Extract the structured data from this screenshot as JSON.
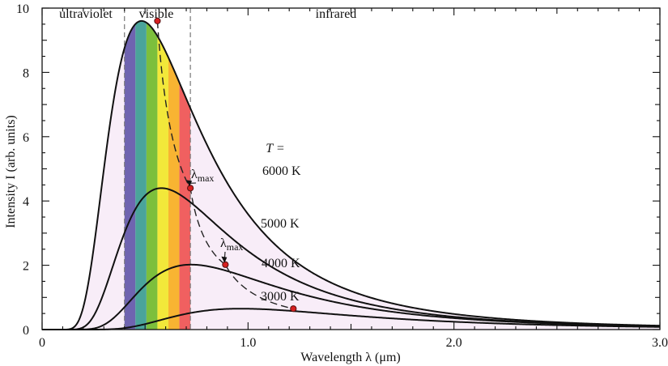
{
  "chart_data": {
    "type": "line",
    "xlabel": "Wavelength  λ  (μm)",
    "ylabel": "Intensity  I  (arb. units)",
    "xlim": [
      0,
      3.0
    ],
    "ylim": [
      0,
      10
    ],
    "x_ticks": [
      "0",
      "1.0",
      "2.0",
      "3.0"
    ],
    "y_ticks": [
      "0",
      "2",
      "4",
      "6",
      "8",
      "10"
    ],
    "regions": [
      {
        "label": "ultraviolet",
        "range": [
          0,
          0.4
        ]
      },
      {
        "label": "visible",
        "range": [
          0.4,
          0.72
        ]
      },
      {
        "label": "infrared",
        "range": [
          0.72,
          3.0
        ]
      }
    ],
    "temperature_label": "T =",
    "series": [
      {
        "name": "6000 K",
        "temperature_K": 6000,
        "peak_x": 0.56,
        "peak_y": 9.6
      },
      {
        "name": "5000 K",
        "temperature_K": 5000,
        "peak_x": 0.72,
        "peak_y": 4.4
      },
      {
        "name": "4000 K",
        "temperature_K": 4000,
        "peak_x": 0.89,
        "peak_y": 2.02
      },
      {
        "name": "3000 K",
        "temperature_K": 3000,
        "peak_x": 1.22,
        "peak_y": 0.65
      }
    ],
    "annotations": [
      {
        "label_main": "λ",
        "label_sub": "max",
        "points_to": "5000 K"
      },
      {
        "label_main": "λ",
        "label_sub": "max",
        "points_to": "4000 K"
      }
    ],
    "colors": {
      "fill": "#f8edf8",
      "visible_bands": [
        "#6f64b0",
        "#4aa49a",
        "#7cbf3c",
        "#f2e83a",
        "#f8b432",
        "#f06060"
      ]
    }
  }
}
